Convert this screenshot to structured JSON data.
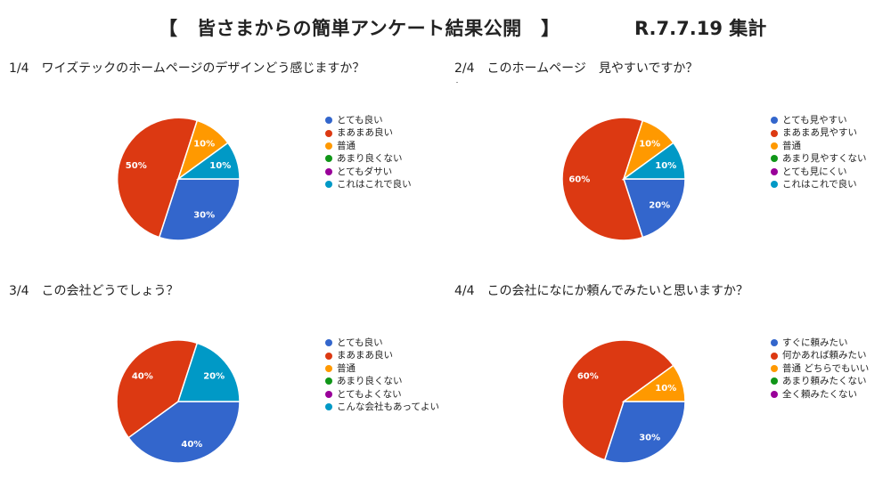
{
  "header": {
    "title": "【　皆さまからの簡単アンケート結果公開　】",
    "date": "R.7.7.19 集計"
  },
  "colors": [
    "#3366cc",
    "#dc3912",
    "#ff9900",
    "#109618",
    "#990099",
    "#0099c6"
  ],
  "chart_data": [
    {
      "type": "pie",
      "title": "1/4　ワイズテックのホームページのデザインどう感じますか？",
      "categories": [
        "とても良い",
        "まあまあ良い",
        "普通",
        "あまり良くない",
        "とてもダサい",
        "これはこれで良い"
      ],
      "values": [
        30,
        50,
        10,
        0,
        0,
        10
      ],
      "labels": [
        "30%",
        "50%",
        "10%",
        "",
        "",
        "10%"
      ],
      "legend_position": "right"
    },
    {
      "type": "pie",
      "title": "2/4　このホームページ　見やすいですか？",
      "categories": [
        "とても見やすい",
        "まあまあ見やすい",
        "普通",
        "あまり見やすくない",
        "とても見にくい",
        "これはこれで良い"
      ],
      "values": [
        20,
        60,
        10,
        0,
        0,
        10
      ],
      "labels": [
        "20%",
        "60%",
        "10%",
        "",
        "",
        "10%"
      ],
      "legend_position": "right"
    },
    {
      "type": "pie",
      "title": "3/4　この会社どうでしょう？",
      "categories": [
        "とても良い",
        "まあまあ良い",
        "普通",
        "あまり良くない",
        "とてもよくない",
        "こんな会社もあってよい"
      ],
      "values": [
        40,
        40,
        0,
        0,
        0,
        20
      ],
      "labels": [
        "40%",
        "40%",
        "",
        "",
        "",
        "20%"
      ],
      "legend_position": "right"
    },
    {
      "type": "pie",
      "title": "4/4　この会社になにか頼んでみたいと思いますか？",
      "categories": [
        "すぐに頼みたい",
        "何かあれば頼みたい",
        "普通 どちらでもいい",
        "あまり頼みたくない",
        "全く頼みたくない"
      ],
      "values": [
        30,
        60,
        10,
        0,
        0
      ],
      "labels": [
        "30%",
        "60%",
        "10%",
        "",
        ""
      ],
      "legend_position": "right"
    }
  ]
}
